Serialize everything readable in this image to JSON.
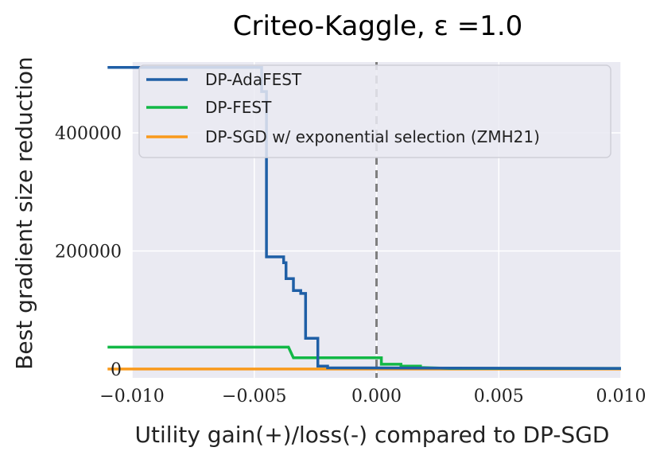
{
  "chart_data": {
    "type": "line",
    "title": "Criteo-Kaggle, ε =1.0",
    "xlabel": "Utility gain(+)/loss(-) compared to DP-SGD",
    "ylabel": "Best gradient size reduction",
    "xlim": [
      -0.01,
      0.01
    ],
    "ylim": [
      -15000,
      520000
    ],
    "x_ticks": [
      -0.01,
      -0.005,
      0.0,
      0.005,
      0.01
    ],
    "x_tick_labels": [
      "−0.010",
      "−0.005",
      "0.000",
      "0.005",
      "0.010"
    ],
    "y_ticks": [
      0,
      200000,
      400000
    ],
    "y_tick_labels": [
      "0",
      "200000",
      "400000"
    ],
    "reference_line_x": 0.0,
    "legend_position": "upper-right",
    "series": [
      {
        "name": "DP-AdaFEST",
        "color": "#1f5fa6",
        "points": [
          [
            -0.011,
            511000
          ],
          [
            -0.0047,
            511000
          ],
          [
            -0.0047,
            470000
          ],
          [
            -0.0045,
            470000
          ],
          [
            -0.0045,
            190000
          ],
          [
            -0.0038,
            190000
          ],
          [
            -0.0038,
            180000
          ],
          [
            -0.0037,
            180000
          ],
          [
            -0.0037,
            153000
          ],
          [
            -0.0034,
            153000
          ],
          [
            -0.0034,
            133000
          ],
          [
            -0.0031,
            133000
          ],
          [
            -0.0031,
            128000
          ],
          [
            -0.0029,
            128000
          ],
          [
            -0.0029,
            52000
          ],
          [
            -0.0024,
            52000
          ],
          [
            -0.0024,
            5000
          ],
          [
            -0.002,
            5000
          ],
          [
            -0.002,
            2000
          ],
          [
            0.01,
            1000
          ]
        ]
      },
      {
        "name": "DP-FEST",
        "color": "#12b846",
        "points": [
          [
            -0.011,
            37000
          ],
          [
            -0.0036,
            37000
          ],
          [
            -0.0034,
            19000
          ],
          [
            0.0002,
            19000
          ],
          [
            0.0002,
            8000
          ],
          [
            0.001,
            8000
          ],
          [
            0.001,
            5000
          ],
          [
            0.0018,
            5000
          ],
          [
            0.0018,
            2500
          ],
          [
            0.003,
            1000
          ],
          [
            0.01,
            1000
          ]
        ]
      },
      {
        "name": "DP-SGD w/ exponential selection (ZMH21)",
        "color": "#f99a1c",
        "points": [
          [
            -0.011,
            0
          ],
          [
            0.01,
            0
          ]
        ]
      }
    ]
  }
}
